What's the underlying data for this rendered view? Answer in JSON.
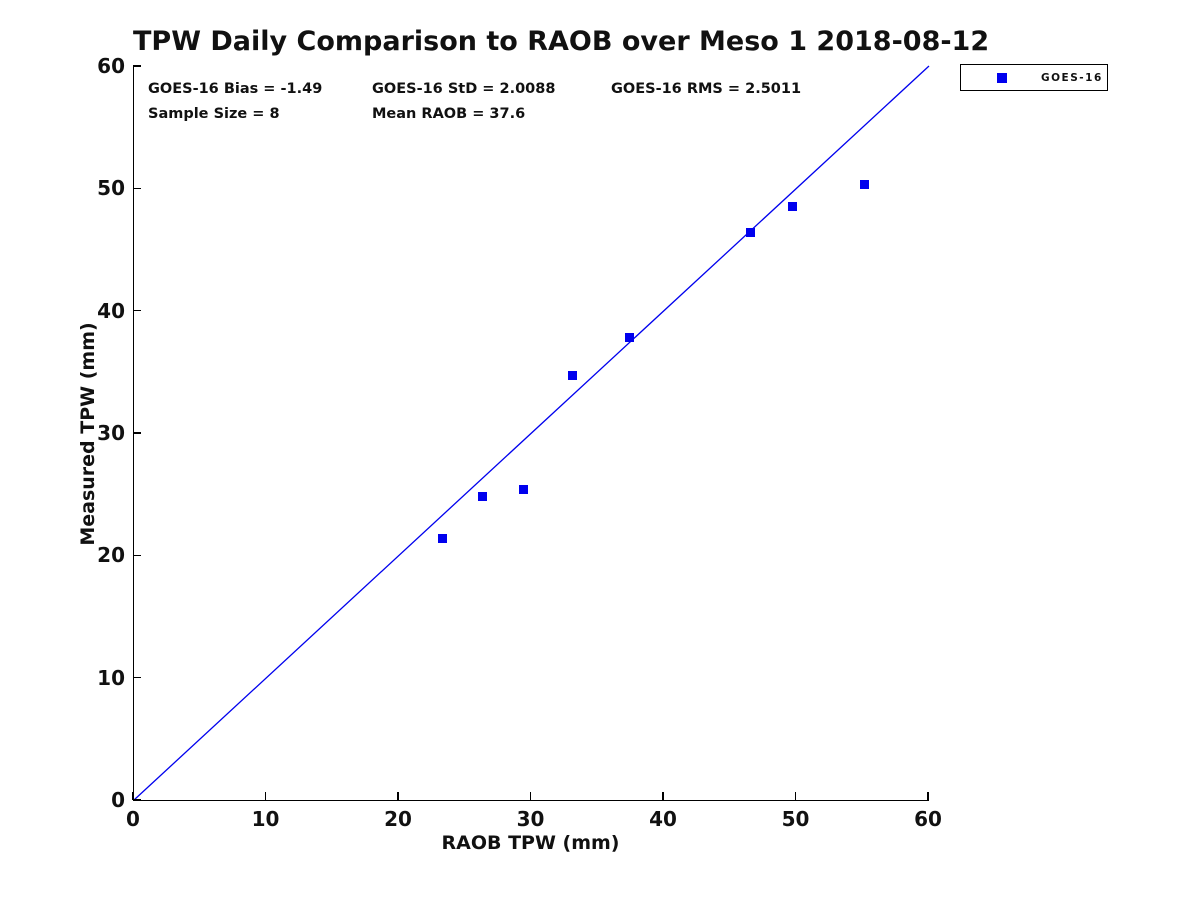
{
  "chart_data": {
    "type": "scatter",
    "title": "TPW Daily Comparison to RAOB over Meso 1 2018-08-12",
    "xlabel": "RAOB TPW (mm)",
    "ylabel": "Measured TPW (mm)",
    "xlim": [
      0,
      60
    ],
    "ylim": [
      0,
      60
    ],
    "x_ticks": [
      0,
      10,
      20,
      30,
      40,
      50,
      60
    ],
    "y_ticks": [
      0,
      10,
      20,
      30,
      40,
      50,
      60
    ],
    "grid": false,
    "legend_position": "top-right-outside",
    "series": [
      {
        "name": "GOES-16",
        "marker": "square",
        "color": "#0000ee",
        "points": [
          [
            23.3,
            21.4
          ],
          [
            26.3,
            24.8
          ],
          [
            29.4,
            25.4
          ],
          [
            33.1,
            34.7
          ],
          [
            37.4,
            37.8
          ],
          [
            46.5,
            46.4
          ],
          [
            49.7,
            48.5
          ],
          [
            55.1,
            50.3
          ]
        ]
      }
    ],
    "reference_line": {
      "from": [
        0,
        0
      ],
      "to": [
        60,
        60
      ],
      "color": "#0000ee"
    },
    "stats": {
      "bias": -1.49,
      "std": 2.0088,
      "rms": 2.5011,
      "sample_size": 8,
      "mean_raob": 37.6
    }
  },
  "annotations": {
    "bias": "GOES-16 Bias = -1.49",
    "std": "GOES-16 StD = 2.0088",
    "rms": "GOES-16 RMS = 2.5011",
    "sample_size": "Sample Size = 8",
    "mean_raob": "Mean RAOB = 37.6"
  },
  "legend": {
    "label": "GOES-16",
    "marker_color": "#0000ee"
  },
  "colors": {
    "accent_blue": "#0000ee",
    "axis_black": "#000000",
    "background": "#ffffff"
  }
}
